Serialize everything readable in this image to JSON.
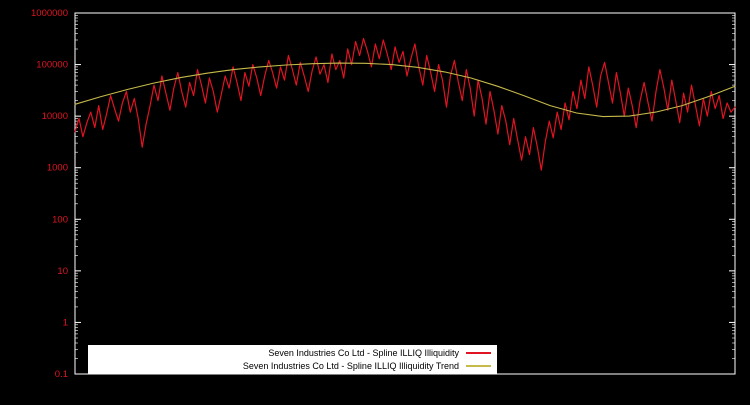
{
  "colors": {
    "background": "#000000",
    "border": "#ffffff",
    "tick_label": "#e01422",
    "series_red": "#e01422",
    "series_trend": "#c6ba4a",
    "legend_bg": "#ffffff",
    "legend_text": "#000000"
  },
  "chart_data": {
    "type": "line",
    "title": "",
    "xlabel": "",
    "ylabel": "",
    "yscale": "log",
    "ylim": [
      0.1,
      1000000
    ],
    "grid": false,
    "legend_position": "bottom-center",
    "background": "#000000",
    "yticks": [
      {
        "label": "1000000",
        "value": 1000000
      },
      {
        "label": "100000",
        "value": 100000
      },
      {
        "label": "10000",
        "value": 10000
      },
      {
        "label": "1000",
        "value": 1000
      },
      {
        "label": "100",
        "value": 100
      },
      {
        "label": "10",
        "value": 10
      },
      {
        "label": "1",
        "value": 1
      },
      {
        "label": "0.1",
        "value": 0.1
      }
    ],
    "series": [
      {
        "name": "Seven Industries Co Ltd - Spline ILLIQ Illiquidity",
        "color": "#e01422",
        "width": 1.2,
        "values": [
          5000,
          9000,
          4000,
          7500,
          12000,
          6000,
          16000,
          5500,
          11000,
          25000,
          14000,
          8000,
          18000,
          30000,
          12000,
          22000,
          9000,
          2500,
          7000,
          16000,
          40000,
          20000,
          60000,
          28000,
          13000,
          35000,
          70000,
          30000,
          15000,
          45000,
          25000,
          80000,
          40000,
          18000,
          55000,
          30000,
          12000,
          26000,
          60000,
          35000,
          90000,
          45000,
          20000,
          70000,
          38000,
          100000,
          55000,
          25000,
          60000,
          120000,
          70000,
          35000,
          90000,
          50000,
          150000,
          80000,
          40000,
          110000,
          60000,
          30000,
          75000,
          140000,
          65000,
          100000,
          45000,
          160000,
          80000,
          120000,
          55000,
          200000,
          100000,
          280000,
          150000,
          320000,
          180000,
          90000,
          250000,
          130000,
          300000,
          160000,
          80000,
          220000,
          110000,
          180000,
          60000,
          130000,
          250000,
          90000,
          40000,
          150000,
          70000,
          30000,
          100000,
          50000,
          15000,
          60000,
          120000,
          45000,
          20000,
          80000,
          35000,
          10000,
          50000,
          22000,
          7000,
          30000,
          13000,
          4500,
          16000,
          8000,
          2800,
          9000,
          3500,
          1400,
          4000,
          1800,
          6000,
          2500,
          900,
          3200,
          8000,
          3800,
          12000,
          5500,
          18000,
          8500,
          30000,
          14000,
          50000,
          22000,
          90000,
          40000,
          15000,
          60000,
          110000,
          45000,
          18000,
          70000,
          28000,
          10000,
          35000,
          16000,
          6000,
          20000,
          45000,
          18000,
          8000,
          30000,
          80000,
          35000,
          13000,
          50000,
          20000,
          7500,
          28000,
          12000,
          40000,
          16000,
          6500,
          22000,
          10000,
          30000,
          14000,
          25000,
          9000,
          18000,
          12000,
          15000
        ]
      },
      {
        "name": "Seven Industries Co Ltd - Spline ILLIQ Illiquidity Trend",
        "color": "#c6ba4a",
        "width": 1.1,
        "values": [
          17000,
          24000,
          33000,
          44000,
          56000,
          68000,
          80000,
          90000,
          98000,
          104000,
          107000,
          106000,
          100000,
          88000,
          72000,
          55000,
          38000,
          25000,
          16000,
          11500,
          9800,
          10000,
          12000,
          16000,
          24000,
          38000
        ]
      }
    ]
  }
}
